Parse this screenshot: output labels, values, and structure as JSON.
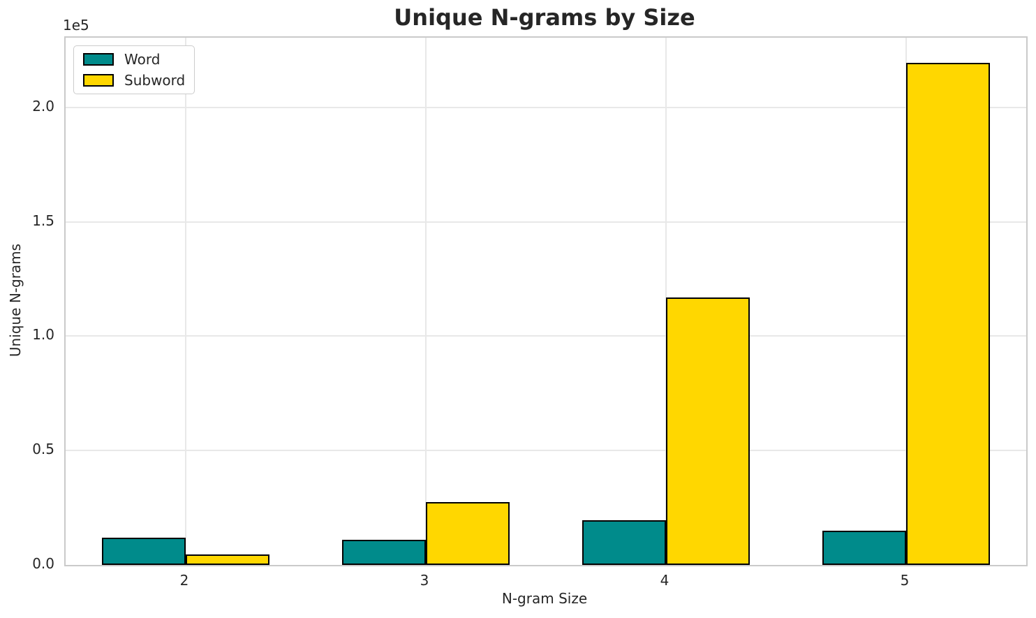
{
  "chart_data": {
    "type": "bar",
    "title": "Unique N-grams by Size",
    "xlabel": "N-gram Size",
    "ylabel": "Unique N-grams",
    "y_offset_label": "1e5",
    "categories": [
      "2",
      "3",
      "4",
      "5"
    ],
    "series": [
      {
        "name": "Word",
        "color": "#008b8b",
        "values": [
          11900,
          11100,
          19600,
          15000
        ]
      },
      {
        "name": "Subword",
        "color": "#ffd700",
        "values": [
          4500,
          27600,
          117000,
          219400
        ]
      }
    ],
    "ylim": [
      0,
      230500
    ],
    "yticks": [
      0,
      50000,
      100000,
      150000,
      200000
    ],
    "ytick_labels": [
      "0.0",
      "0.5",
      "1.0",
      "1.5",
      "2.0"
    ],
    "grid": true,
    "legend_position": "upper left",
    "bar_edge_color": "#000000",
    "bar_width_fraction": 0.35
  }
}
